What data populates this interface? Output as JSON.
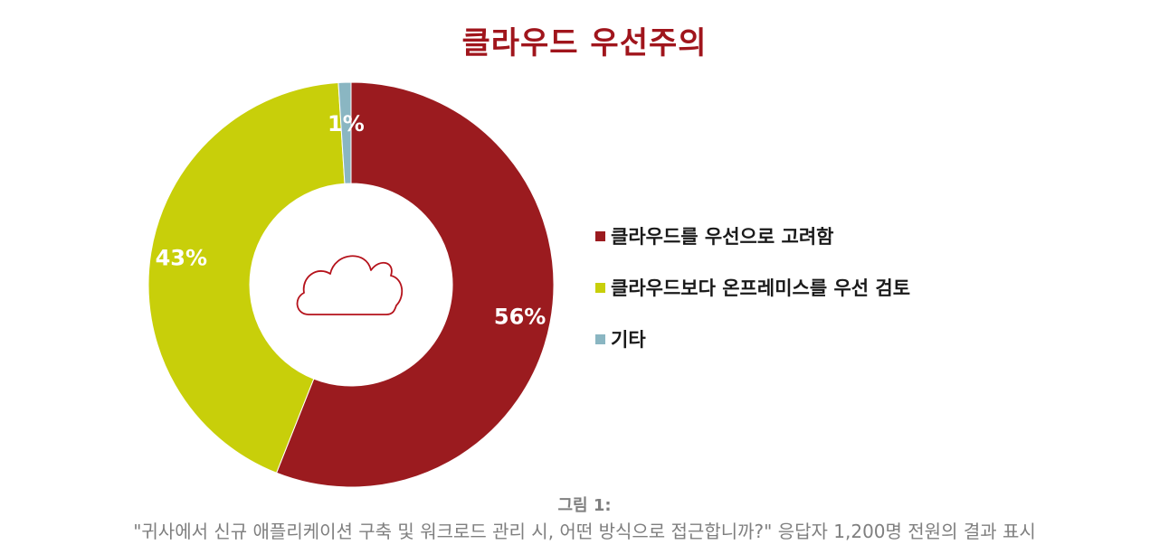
{
  "chart_data": {
    "type": "pie",
    "title": "클라우드 우선주의",
    "categories": [
      "클라우드를 우선으로 고려함",
      "클라우드보다 온프레미스를 우선 검토",
      "기타"
    ],
    "values": [
      56,
      43,
      1
    ],
    "value_labels": [
      "56%",
      "43%",
      "1%"
    ],
    "colors": [
      "#9b1b1f",
      "#c8cf0a",
      "#8ab6c2"
    ],
    "donut": true,
    "center_icon": "cloud-icon",
    "legend_position": "right"
  },
  "caption": {
    "title": "그림 1:",
    "text": "\"귀사에서 신규 애플리케이션 구축 및 워크로드 관리 시, 어떤 방식으로 접근합니까?\" 응답자 1,200명 전원의 결과 표시"
  }
}
